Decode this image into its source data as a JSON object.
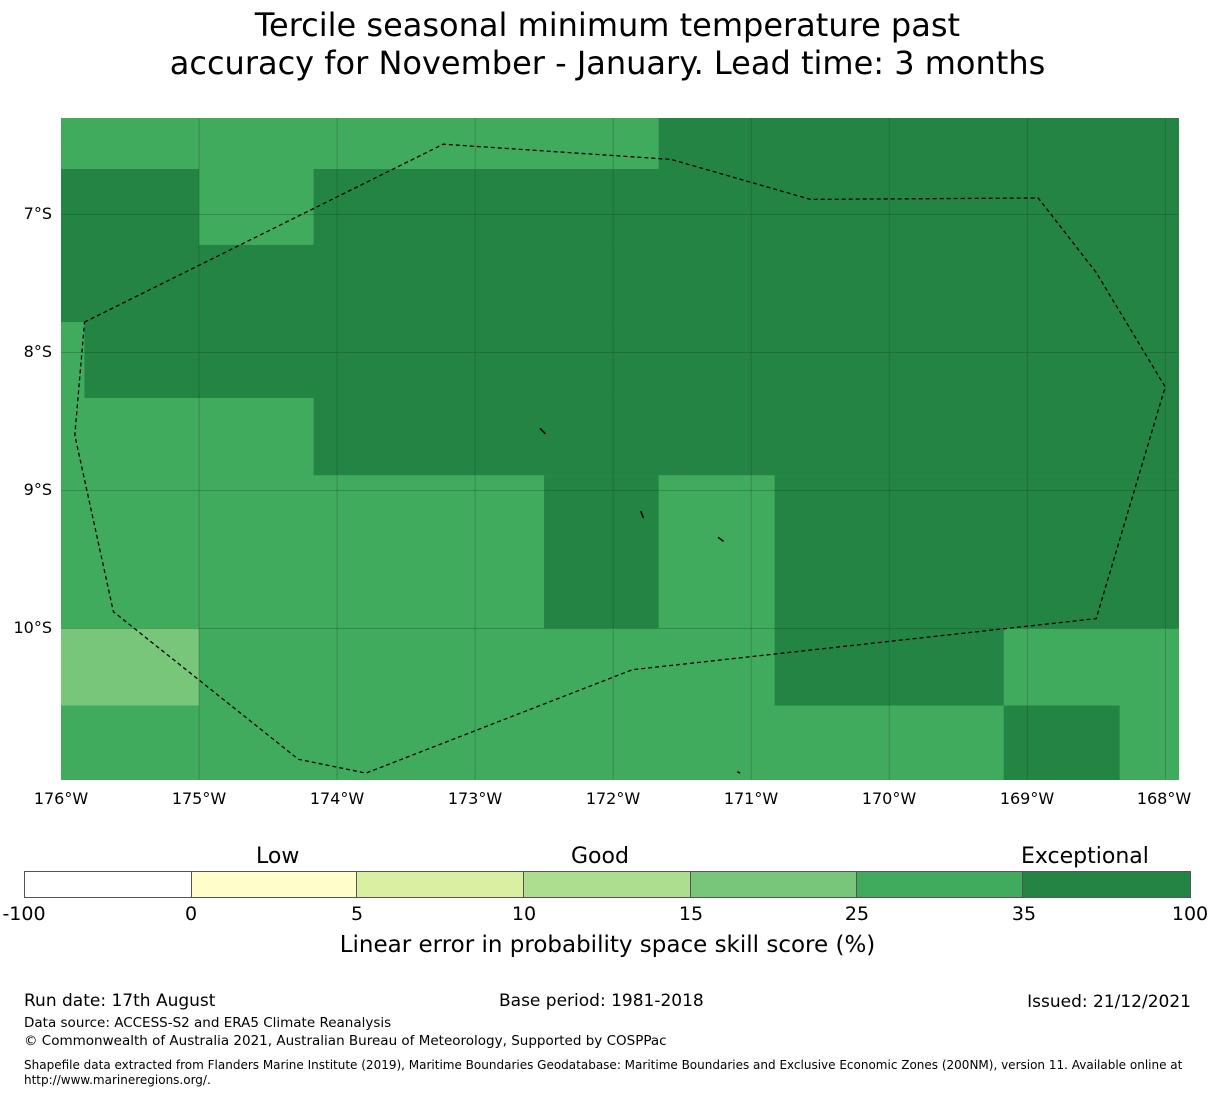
{
  "title": {
    "line1": "Tercile seasonal minimum temperature past",
    "line2": "accuracy for November - January. Lead time: 3 months"
  },
  "map": {
    "lat_labels": [
      "7°S",
      "8°S",
      "9°S",
      "10°S"
    ],
    "lon_labels": [
      "176°W",
      "175°W",
      "174°W",
      "173°W",
      "172°W",
      "171°W",
      "170°W",
      "169°W",
      "168°W"
    ],
    "lon_range": [
      -176.0,
      -167.9
    ],
    "lat_range": [
      -11.1,
      -6.3
    ],
    "colors": {
      "exceptional": "#238443",
      "good_high": "#41ab5d",
      "good": "#78c679"
    },
    "cells": [
      {
        "lon": [
          -176.0,
          -171.67
        ],
        "lat": [
          -6.67,
          -6.3
        ],
        "class": "good_high"
      },
      {
        "lon": [
          -171.67,
          -167.9
        ],
        "lat": [
          -6.67,
          -6.3
        ],
        "class": "exceptional"
      },
      {
        "lon": [
          -176.0,
          -175.0
        ],
        "lat": [
          -7.78,
          -6.67
        ],
        "class": "exceptional"
      },
      {
        "lon": [
          -175.0,
          -174.17
        ],
        "lat": [
          -7.22,
          -6.67
        ],
        "class": "good_high"
      },
      {
        "lon": [
          -174.17,
          -167.9
        ],
        "lat": [
          -7.22,
          -6.67
        ],
        "class": "exceptional"
      },
      {
        "lon": [
          -175.0,
          -167.9
        ],
        "lat": [
          -7.78,
          -7.22
        ],
        "class": "exceptional"
      },
      {
        "lon": [
          -176.0,
          -175.83
        ],
        "lat": [
          -8.33,
          -7.78
        ],
        "class": "good_high"
      },
      {
        "lon": [
          -175.83,
          -167.9
        ],
        "lat": [
          -8.33,
          -7.78
        ],
        "class": "exceptional"
      },
      {
        "lon": [
          -174.17,
          -167.9
        ],
        "lat": [
          -8.89,
          -8.33
        ],
        "class": "exceptional"
      },
      {
        "lon": [
          -172.5,
          -171.67
        ],
        "lat": [
          -10.0,
          -8.89
        ],
        "class": "exceptional"
      },
      {
        "lon": [
          -170.83,
          -167.9
        ],
        "lat": [
          -10.0,
          -8.89
        ],
        "class": "exceptional"
      },
      {
        "lon": [
          -176.0,
          -175.0
        ],
        "lat": [
          -10.56,
          -10.0
        ],
        "class": "good"
      },
      {
        "lon": [
          -170.83,
          -169.17
        ],
        "lat": [
          -10.56,
          -10.0
        ],
        "class": "exceptional"
      },
      {
        "lon": [
          -169.17,
          -168.33
        ],
        "lat": [
          -11.1,
          -10.56
        ],
        "class": "exceptional"
      }
    ],
    "boundary": [
      [
        -175.83,
        -7.78
      ],
      [
        -173.23,
        -6.49
      ],
      [
        -171.58,
        -6.6
      ],
      [
        -170.57,
        -6.89
      ],
      [
        -168.92,
        -6.88
      ],
      [
        -168.5,
        -7.42
      ],
      [
        -168.0,
        -8.25
      ],
      [
        -168.5,
        -9.93
      ],
      [
        -171.86,
        -10.3
      ],
      [
        -173.79,
        -11.05
      ],
      [
        -174.28,
        -10.95
      ],
      [
        -175.62,
        -9.88
      ],
      [
        -175.9,
        -8.6
      ],
      [
        -175.83,
        -7.78
      ]
    ],
    "islands": [
      [
        [
          -172.53,
          -8.55
        ],
        [
          -172.49,
          -8.59
        ]
      ],
      [
        [
          -171.8,
          -9.15
        ],
        [
          -171.78,
          -9.2
        ]
      ],
      [
        [
          -171.24,
          -9.34
        ],
        [
          -171.2,
          -9.37
        ]
      ],
      [
        [
          -171.1,
          -11.04
        ],
        [
          -171.08,
          -11.05
        ]
      ]
    ]
  },
  "colorbar": {
    "categories": [
      "Low",
      "Good",
      "Exceptional"
    ],
    "ticks": [
      "-100",
      "0",
      "5",
      "10",
      "15",
      "25",
      "35",
      "100"
    ],
    "colors": [
      "#ffffff",
      "#ffffcc",
      "#d9f0a3",
      "#addd8e",
      "#78c679",
      "#41ab5d",
      "#238443"
    ],
    "label": "Linear error in probability space skill score (%)"
  },
  "footer": {
    "run_date": "Run date: 17th August",
    "base_period": "Base period: 1981-2018",
    "issued": "Issued: 21/12/2021",
    "data_source": "Data source: ACCESS-S2 and ERA5 Climate Reanalysis",
    "copyright": "© Commonwealth of Australia 2021, Australian Bureau of Meteorology, Supported by COSPPac",
    "shapefile": "Shapefile data extracted from Flanders Marine Institute (2019), Maritime Boundaries Geodatabase: Maritime Boundaries and Exclusive Economic Zones (200NM), version 11. Available online at http://www.marineregions.org/."
  }
}
